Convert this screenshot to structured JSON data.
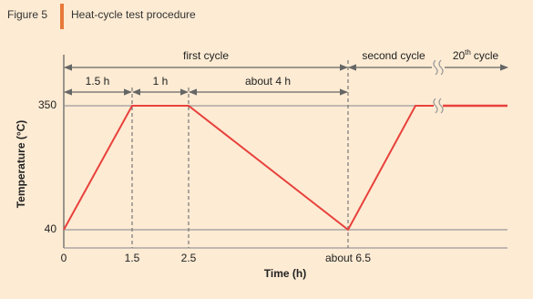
{
  "header": {
    "label": "Figure 5",
    "title": "Heat-cycle test procedure"
  },
  "diagram": {
    "y_axis_title": "Temperature (°C)",
    "x_axis_title": "Time (h)",
    "y_labels": [
      "350",
      "40"
    ],
    "x_labels": [
      "0",
      "1.5",
      "2.5",
      "about 6.5"
    ],
    "phases": [
      "first cycle",
      "second cycle"
    ],
    "last_phase": {
      "number": "20",
      "suffix": "th",
      "text": "cycle"
    },
    "intervals": [
      "1.5 h",
      "1 h",
      "about 4 h"
    ]
  }
}
